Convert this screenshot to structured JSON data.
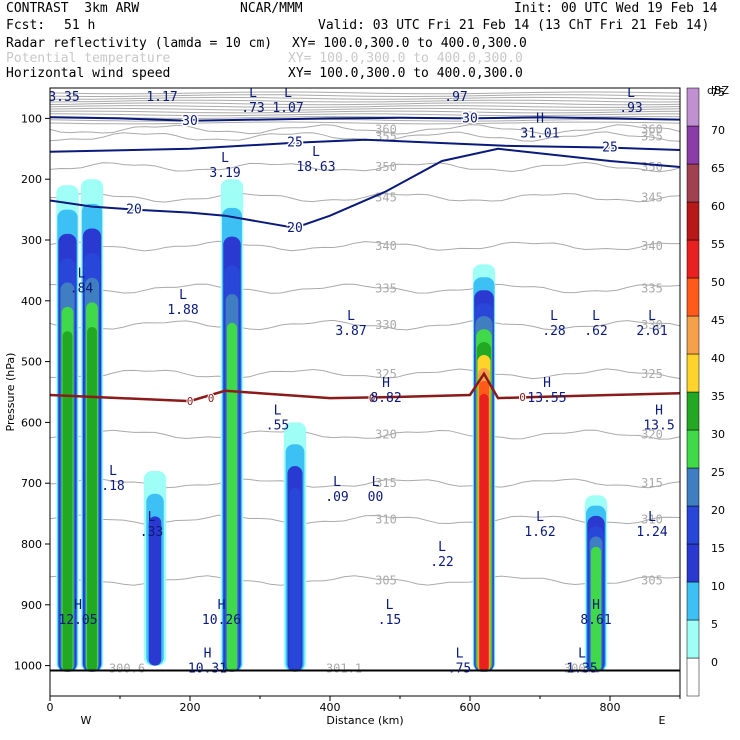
{
  "header": {
    "model": "CONTRAST  3km ARW",
    "center": "NCAR/MMM",
    "init": "Init: 00 UTC Wed 19 Feb 14",
    "fcst_label": "Fcst:",
    "fcst_value": "51 h",
    "valid": "Valid: 03 UTC Fri 21 Feb 14 (13 ChT Fri 21 Feb 14)",
    "fields": [
      {
        "name": "Radar reflectivity (lamda = 10 cm)",
        "xy": "XY= 100.0,300.0 to 400.0,300.0",
        "faded": false
      },
      {
        "name": "Potential temperature",
        "xy": "XY= 100.0,300.0 to 400.0,300.0",
        "faded": true
      },
      {
        "name": "Horizontal wind speed",
        "xy": "XY= 100.0,300.0 to 400.0,300.0",
        "faded": false
      }
    ]
  },
  "colors": {
    "wind": "#0a1a7a",
    "theta": "#aaaaaa",
    "freezing": "#8b1a1a",
    "ground": "#000000"
  },
  "chart_data": {
    "type": "heatmap",
    "title": "Radar reflectivity cross-section",
    "xlabel": "Distance (km)",
    "ylabel": "Pressure (hPa)",
    "xlim": [
      0,
      900
    ],
    "ylim_hpa": [
      1050,
      50
    ],
    "x_ticks": [
      0,
      200,
      400,
      600,
      800
    ],
    "y_ticks": [
      100,
      200,
      300,
      400,
      500,
      600,
      700,
      800,
      900,
      1000
    ],
    "west_label": "W",
    "east_label": "E",
    "colorbar": {
      "unit": "dBZ",
      "levels": [
        0,
        5,
        10,
        15,
        20,
        25,
        30,
        35,
        40,
        45,
        50,
        55,
        60,
        65,
        70,
        75
      ],
      "colors": [
        "#ffffff",
        "#9ffff7",
        "#3dc1f5",
        "#2a3ad1",
        "#2846d8",
        "#3f7ec0",
        "#3fd949",
        "#22a822",
        "#fed42a",
        "#f7a04a",
        "#ff5a1a",
        "#e82020",
        "#b81818",
        "#a04050",
        "#8a3ca8",
        "#c090d0"
      ]
    },
    "reflectivity_cells": [
      {
        "x": 25,
        "p_top": 210,
        "p_bottom": 1010,
        "max_dbz": 35
      },
      {
        "x": 60,
        "p_top": 200,
        "p_bottom": 1010,
        "max_dbz": 35
      },
      {
        "x": 150,
        "p_top": 680,
        "p_bottom": 1000,
        "max_dbz": 15
      },
      {
        "x": 260,
        "p_top": 200,
        "p_bottom": 1010,
        "max_dbz": 30
      },
      {
        "x": 350,
        "p_top": 600,
        "p_bottom": 1010,
        "max_dbz": 20
      },
      {
        "x": 620,
        "p_top": 340,
        "p_bottom": 1010,
        "max_dbz": 55
      },
      {
        "x": 780,
        "p_top": 720,
        "p_bottom": 1010,
        "max_dbz": 30
      }
    ],
    "wind_contours": [
      {
        "label": "30",
        "points": [
          [
            0,
            98
          ],
          [
            100,
            100
          ],
          [
            200,
            104
          ],
          [
            300,
            102
          ],
          [
            400,
            100
          ],
          [
            500,
            99
          ],
          [
            600,
            100
          ],
          [
            700,
            98
          ],
          [
            800,
            100
          ],
          [
            900,
            102
          ]
        ]
      },
      {
        "label": "25",
        "points": [
          [
            0,
            155
          ],
          [
            200,
            150
          ],
          [
            350,
            140
          ],
          [
            450,
            135
          ],
          [
            550,
            140
          ],
          [
            650,
            145
          ],
          [
            800,
            148
          ],
          [
            900,
            152
          ]
        ]
      },
      {
        "label": "20",
        "points": [
          [
            0,
            235
          ],
          [
            60,
            245
          ],
          [
            120,
            250
          ],
          [
            200,
            255
          ],
          [
            250,
            260
          ],
          [
            300,
            270
          ],
          [
            350,
            280
          ],
          [
            400,
            260
          ],
          [
            480,
            220
          ],
          [
            560,
            170
          ],
          [
            640,
            150
          ],
          [
            720,
            160
          ],
          [
            800,
            170
          ],
          [
            900,
            180
          ]
        ]
      }
    ],
    "freezing_level": {
      "label": "0",
      "points": [
        [
          0,
          555
        ],
        [
          100,
          560
        ],
        [
          200,
          565
        ],
        [
          250,
          548
        ],
        [
          300,
          552
        ],
        [
          400,
          560
        ],
        [
          500,
          558
        ],
        [
          600,
          555
        ],
        [
          620,
          520
        ],
        [
          640,
          560
        ],
        [
          700,
          558
        ],
        [
          800,
          555
        ],
        [
          900,
          552
        ]
      ]
    },
    "theta_contours": [
      {
        "value": "360",
        "p": 118
      },
      {
        "value": "355",
        "p": 130
      },
      {
        "value": "350",
        "p": 180
      },
      {
        "value": "345",
        "p": 230
      },
      {
        "value": "340",
        "p": 310
      },
      {
        "value": "335",
        "p": 380
      },
      {
        "value": "330",
        "p": 440
      },
      {
        "value": "325",
        "p": 520
      },
      {
        "value": "320",
        "p": 620
      },
      {
        "value": "315",
        "p": 700
      },
      {
        "value": "310",
        "p": 760
      },
      {
        "value": "305",
        "p": 860
      },
      {
        "value": "300.6",
        "p": 1005
      },
      {
        "value": "301.1",
        "p": 1005
      },
      {
        "value": "300.1",
        "p": 1005
      }
    ],
    "annotations": [
      {
        "type": "L",
        "value": "3.35",
        "x": 20,
        "p": 60
      },
      {
        "type": "L",
        "value": "1.17",
        "x": 160,
        "p": 60
      },
      {
        "type": "L",
        "value": ".73",
        "x": 290,
        "p": 78
      },
      {
        "type": "L",
        "value": "1.07",
        "x": 340,
        "p": 78
      },
      {
        "type": "L",
        "value": ".97",
        "x": 580,
        "p": 60
      },
      {
        "type": "L",
        "value": ".93",
        "x": 830,
        "p": 78
      },
      {
        "type": "H",
        "value": "31.01",
        "x": 700,
        "p": 120
      },
      {
        "type": "L",
        "value": "3.19",
        "x": 250,
        "p": 185
      },
      {
        "type": "L",
        "value": "18.63",
        "x": 380,
        "p": 175
      },
      {
        "type": "L",
        "value": ".84",
        "x": 45,
        "p": 375
      },
      {
        "type": "L",
        "value": "1.88",
        "x": 190,
        "p": 410
      },
      {
        "type": "L",
        "value": "3.87",
        "x": 430,
        "p": 445
      },
      {
        "type": "L",
        "value": ".28",
        "x": 720,
        "p": 445
      },
      {
        "type": "L",
        "value": ".62",
        "x": 780,
        "p": 445
      },
      {
        "type": "L",
        "value": "2.61",
        "x": 860,
        "p": 445
      },
      {
        "type": "H",
        "value": "8.82",
        "x": 480,
        "p": 555
      },
      {
        "type": "H",
        "value": "13.55",
        "x": 710,
        "p": 555
      },
      {
        "type": "H",
        "value": "13.5",
        "x": 870,
        "p": 600
      },
      {
        "type": "L",
        "value": ".55",
        "x": 325,
        "p": 600
      },
      {
        "type": "L",
        "value": ".18",
        "x": 90,
        "p": 700
      },
      {
        "type": "L",
        "value": ".09",
        "x": 410,
        "p": 718
      },
      {
        "type": "L",
        "value": "00",
        "x": 465,
        "p": 718
      },
      {
        "type": "L",
        "value": ".33",
        "x": 145,
        "p": 775
      },
      {
        "type": "L",
        "value": "1.62",
        "x": 700,
        "p": 775
      },
      {
        "type": "L",
        "value": "1.24",
        "x": 860,
        "p": 775
      },
      {
        "type": "L",
        "value": ".22",
        "x": 560,
        "p": 825
      },
      {
        "type": "H",
        "value": "12.05",
        "x": 40,
        "p": 920
      },
      {
        "type": "H",
        "value": "10.26",
        "x": 245,
        "p": 920
      },
      {
        "type": "L",
        "value": ".15",
        "x": 485,
        "p": 920
      },
      {
        "type": "H",
        "value": "8.61",
        "x": 780,
        "p": 920
      },
      {
        "type": "H",
        "value": "10.31",
        "x": 225,
        "p": 1000
      },
      {
        "type": "L",
        "value": ".75",
        "x": 585,
        "p": 1000
      },
      {
        "type": "L",
        "value": "1.35",
        "x": 760,
        "p": 1000
      }
    ]
  }
}
